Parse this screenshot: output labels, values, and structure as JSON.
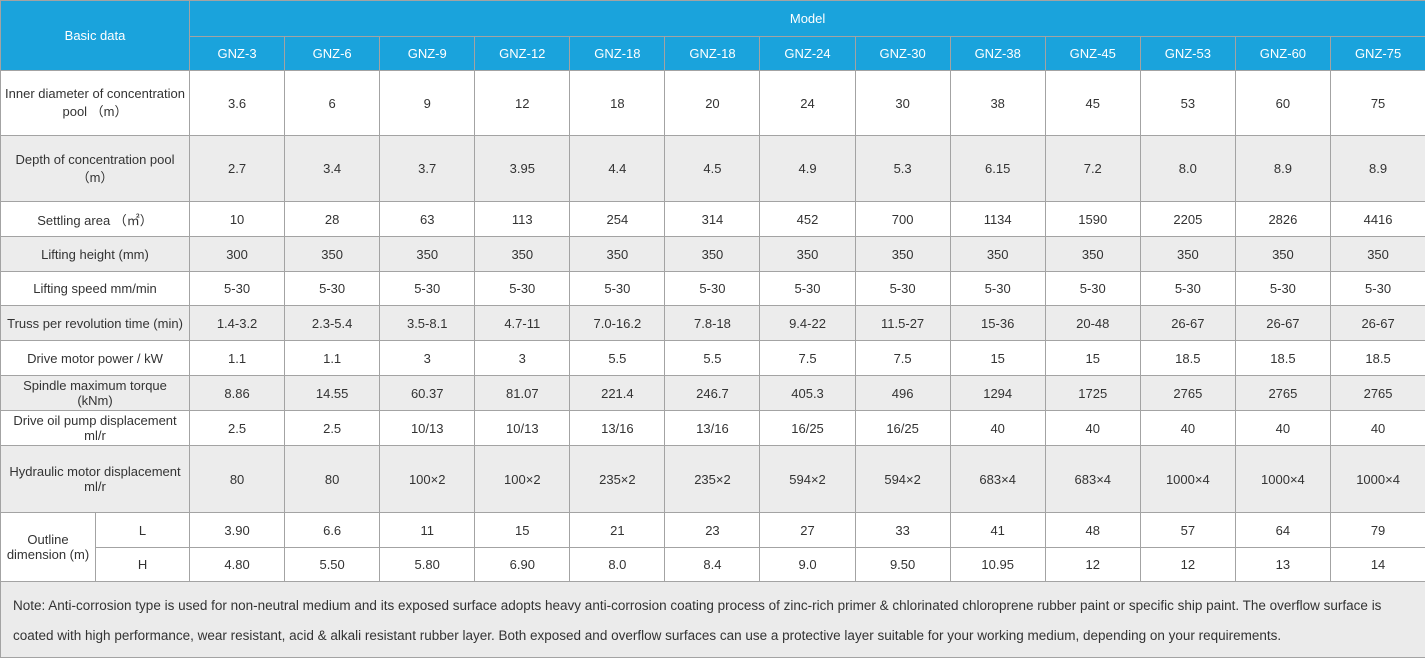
{
  "table": {
    "basic_data_label": "Basic data",
    "model_label": "Model",
    "models": [
      "GNZ-3",
      "GNZ-6",
      "GNZ-9",
      "GNZ-12",
      "GNZ-18",
      "GNZ-18",
      "GNZ-24",
      "GNZ-30",
      "GNZ-38",
      "GNZ-45",
      "GNZ-53",
      "GNZ-60",
      "GNZ-75"
    ],
    "rows": [
      {
        "label": "Inner diameter of concentration pool （m）",
        "values": [
          "3.6",
          "6",
          "9",
          "12",
          "18",
          "20",
          "24",
          "30",
          "38",
          "45",
          "53",
          "60",
          "75"
        ]
      },
      {
        "label": "Depth of concentration pool （m）",
        "values": [
          "2.7",
          "3.4",
          "3.7",
          "3.95",
          "4.4",
          "4.5",
          "4.9",
          "5.3",
          "6.15",
          "7.2",
          "8.0",
          "8.9",
          "8.9"
        ]
      },
      {
        "label": "Settling area （㎡）",
        "values": [
          "10",
          "28",
          "63",
          "113",
          "254",
          "314",
          "452",
          "700",
          "1134",
          "1590",
          "2205",
          "2826",
          "4416"
        ]
      },
      {
        "label": "Lifting height (mm)",
        "values": [
          "300",
          "350",
          "350",
          "350",
          "350",
          "350",
          "350",
          "350",
          "350",
          "350",
          "350",
          "350",
          "350"
        ]
      },
      {
        "label": "Lifting speed mm/min",
        "values": [
          "5-30",
          "5-30",
          "5-30",
          "5-30",
          "5-30",
          "5-30",
          "5-30",
          "5-30",
          "5-30",
          "5-30",
          "5-30",
          "5-30",
          "5-30"
        ]
      },
      {
        "label": "Truss per revolution time (min)",
        "values": [
          "1.4-3.2",
          "2.3-5.4",
          "3.5-8.1",
          "4.7-11",
          "7.0-16.2",
          "7.8-18",
          "9.4-22",
          "11.5-27",
          "15-36",
          "20-48",
          "26-67",
          "26-67",
          "26-67"
        ]
      },
      {
        "label": "Drive motor power / kW",
        "values": [
          "1.1",
          "1.1",
          "3",
          "3",
          "5.5",
          "5.5",
          "7.5",
          "7.5",
          "15",
          "15",
          "18.5",
          "18.5",
          "18.5"
        ]
      },
      {
        "label": "Spindle maximum torque (kNm)",
        "values": [
          "8.86",
          "14.55",
          "60.37",
          "81.07",
          "221.4",
          "246.7",
          "405.3",
          "496",
          "1294",
          "1725",
          "2765",
          "2765",
          "2765"
        ]
      },
      {
        "label": "Drive oil pump displacement ml/r",
        "values": [
          "2.5",
          "2.5",
          "10/13",
          "10/13",
          "13/16",
          "13/16",
          "16/25",
          "16/25",
          "40",
          "40",
          "40",
          "40",
          "40"
        ]
      },
      {
        "label": "Hydraulic motor displacement ml/r",
        "values": [
          "80",
          "80",
          "100×2",
          "100×2",
          "235×2",
          "235×2",
          "594×2",
          "594×2",
          "683×4",
          "683×4",
          "1000×4",
          "1000×4",
          "1000×4"
        ]
      }
    ],
    "outline": {
      "label": "Outline dimension (m)",
      "sub_rows": [
        {
          "label": "L",
          "values": [
            "3.90",
            "6.6",
            "11",
            "15",
            "21",
            "23",
            "27",
            "33",
            "41",
            "48",
            "57",
            "64",
            "79"
          ]
        },
        {
          "label": "H",
          "values": [
            "4.80",
            "5.50",
            "5.80",
            "6.90",
            "8.0",
            "8.4",
            "9.0",
            "9.50",
            "10.95",
            "12",
            "12",
            "13",
            "14"
          ]
        }
      ]
    },
    "note": "Note: Anti-corrosion type is used for non-neutral medium and its exposed surface adopts heavy anti-corrosion coating process of zinc-rich primer & chlorinated chloroprene rubber paint or specific ship paint. The overflow surface is coated with high performance, wear resistant, acid & alkali resistant rubber layer. Both exposed and overflow surfaces can use a protective layer suitable for your working medium, depending on your requirements."
  },
  "colors": {
    "header_bg": "#1aa3dc",
    "header_text": "#ffffff",
    "shaded_row_bg": "#ececec",
    "note_bg": "#ebebeb",
    "border": "#a3a3a3",
    "text": "#333333"
  }
}
